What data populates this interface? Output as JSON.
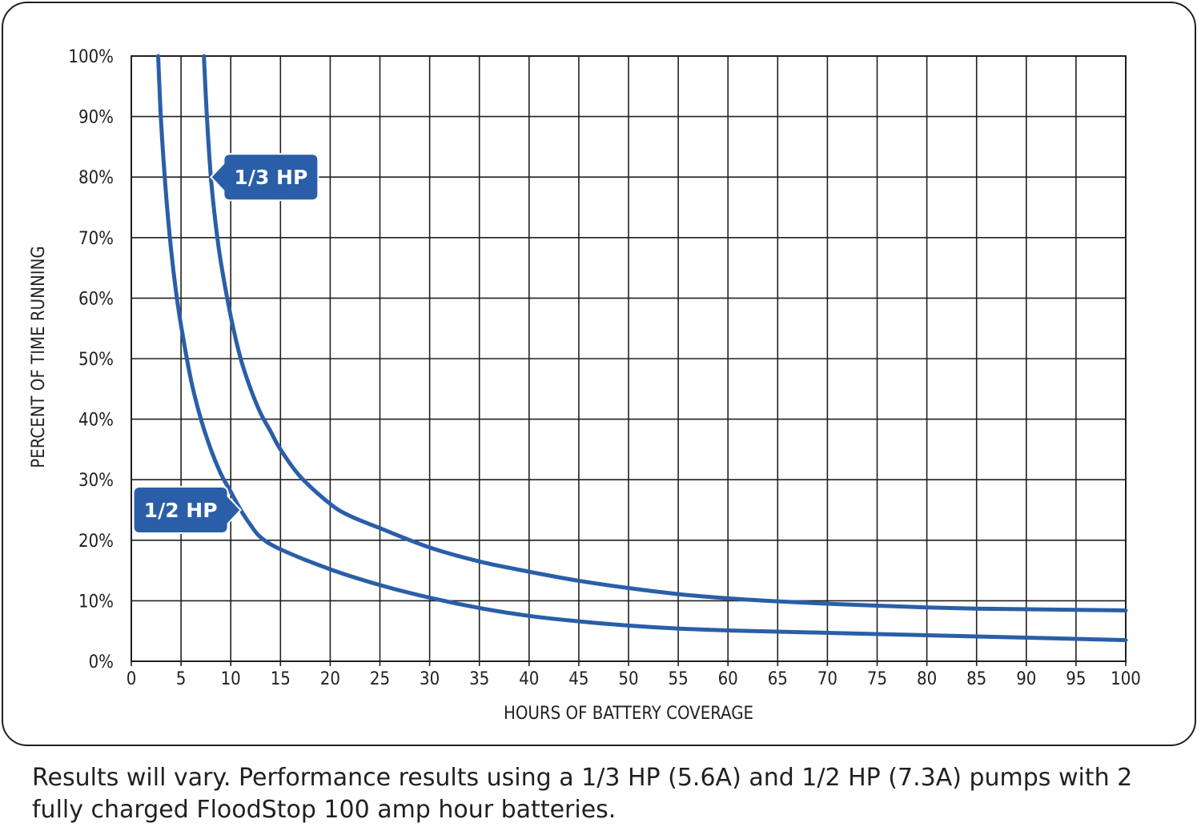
{
  "chart_data": {
    "type": "line",
    "title": "",
    "xlabel": "HOURS OF BATTERY COVERAGE",
    "ylabel": "PERCENT OF TIME RUNNING",
    "xlim": [
      0,
      100
    ],
    "ylim": [
      0,
      100
    ],
    "grid": true,
    "x_ticks": [
      0,
      5,
      10,
      15,
      20,
      25,
      30,
      35,
      40,
      45,
      50,
      55,
      60,
      65,
      70,
      75,
      80,
      85,
      90,
      95,
      100
    ],
    "y_ticks": [
      0,
      10,
      20,
      30,
      40,
      50,
      60,
      70,
      80,
      90,
      100
    ],
    "x_tick_labels": [
      "0",
      "5",
      "10",
      "15",
      "20",
      "25",
      "30",
      "35",
      "40",
      "45",
      "50",
      "55",
      "60",
      "65",
      "70",
      "75",
      "80",
      "85",
      "90",
      "95",
      "100"
    ],
    "y_tick_labels": [
      "0%",
      "10%",
      "20%",
      "30%",
      "40%",
      "50%",
      "60%",
      "70%",
      "80%",
      "90%",
      "100%"
    ],
    "series": [
      {
        "name": "1/3 HP",
        "color": "#2a5ea8",
        "x": [
          7.3,
          7.6,
          8,
          8.5,
          9,
          10,
          11,
          12,
          13,
          14,
          15,
          17,
          20,
          22,
          25,
          30,
          35,
          40,
          45,
          50,
          55,
          60,
          65,
          70,
          75,
          80,
          85,
          90,
          95,
          100
        ],
        "y": [
          100,
          90,
          80,
          72,
          66,
          57,
          50,
          45,
          41,
          38,
          35,
          30.5,
          26,
          24,
          22,
          18.8,
          16.5,
          14.8,
          13.3,
          12.1,
          11.1,
          10.4,
          9.9,
          9.5,
          9.2,
          8.9,
          8.7,
          8.6,
          8.5,
          8.4
        ]
      },
      {
        "name": "1/2 HP",
        "color": "#2a5ea8",
        "x": [
          2.7,
          3,
          3.5,
          4,
          4.5,
          5,
          6,
          7,
          8,
          9,
          10,
          11,
          12,
          13,
          15,
          20,
          25,
          30,
          35,
          40,
          45,
          50,
          55,
          60,
          65,
          70,
          75,
          80,
          85,
          90,
          95,
          100
        ],
        "y": [
          100,
          89,
          77,
          68,
          61,
          55.5,
          46.5,
          40,
          35,
          31,
          28,
          25,
          22.5,
          20.5,
          18.5,
          15.2,
          12.6,
          10.5,
          8.8,
          7.5,
          6.6,
          5.9,
          5.4,
          5.1,
          4.9,
          4.7,
          4.5,
          4.3,
          4.1,
          3.9,
          3.7,
          3.5
        ]
      }
    ],
    "annotations": [
      {
        "text": "1/3 HP",
        "series": "1/3 HP",
        "x": 8,
        "y": 80
      },
      {
        "text": "1/2 HP",
        "series": "1/2 HP",
        "x": 11,
        "y": 25
      }
    ]
  },
  "footnote": "Results will vary. Performance results using a 1/3 HP (5.6A) and 1/2 HP (7.3A) pumps with 2 fully charged FloodStop 100 amp hour batteries."
}
